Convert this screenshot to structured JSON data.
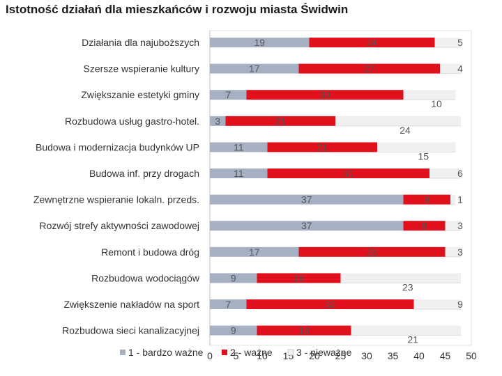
{
  "chart_data": {
    "type": "bar",
    "orientation": "horizontal",
    "stacked": true,
    "title": "Istotność działań dla mieszkańców i rozwoju miasta Świdwin",
    "categories": [
      "Działania dla najuboższych",
      "Szersze wspieranie kultury",
      "Zwiększanie estetyki gminy",
      "Rozbudowa usług gastro-hotel.",
      "Budowa i modernizacja budynków UP",
      "Budowa inf. przy drogach",
      "Zewnętrzne wspieranie lokaln. przeds.",
      "Rozwój strefy aktywności zawodowej",
      "Remont i budowa dróg",
      "Rozbudowa wodociągów",
      "Zwiększenie nakładów na sport",
      "Rozbudowa sieci kanalizacyjnej"
    ],
    "series": [
      {
        "name": "1 - bardzo ważne",
        "color": "#a5b1c2",
        "values": [
          19,
          17,
          7,
          3,
          11,
          11,
          37,
          37,
          17,
          9,
          7,
          9
        ]
      },
      {
        "name": "2 - ważne",
        "color": "#e0111c",
        "values": [
          24,
          27,
          30,
          21,
          21,
          31,
          9,
          8,
          28,
          16,
          32,
          18
        ]
      },
      {
        "name": "3 - nieważne",
        "color": "#f0f0f0",
        "values": [
          5,
          4,
          10,
          24,
          15,
          6,
          1,
          3,
          3,
          23,
          9,
          21
        ]
      }
    ],
    "xlim": [
      0,
      50
    ],
    "xticks": [
      "0",
      "5",
      "10",
      "15",
      "20",
      "25",
      "30",
      "35",
      "40",
      "45",
      "50"
    ],
    "legend_position": "bottom"
  }
}
